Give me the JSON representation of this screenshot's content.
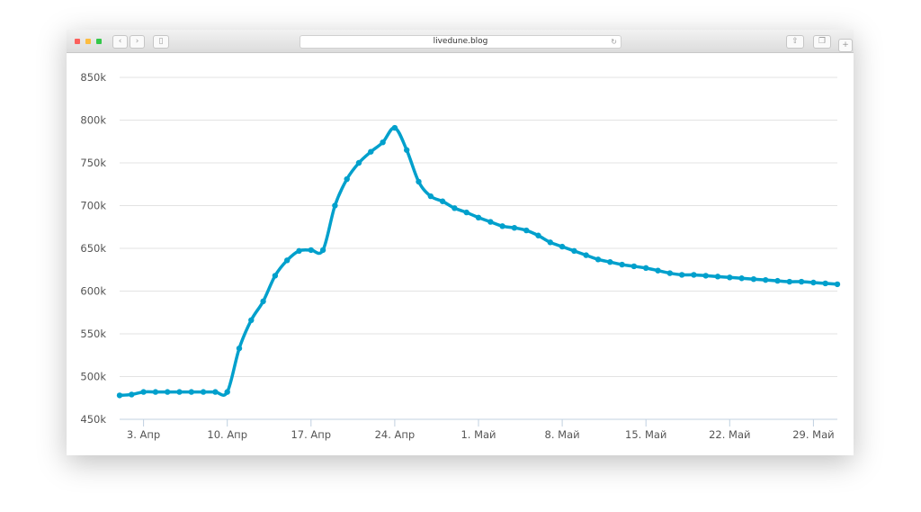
{
  "browser": {
    "url": "livedune.blog",
    "icons": [
      "close-dot",
      "minimize-dot",
      "maximize-dot",
      "back-icon",
      "forward-icon",
      "sidebar-icon",
      "reload-icon",
      "share-icon",
      "tabs-icon",
      "new-tab-icon"
    ],
    "back": "‹",
    "forward": "›",
    "new_tab": "+"
  },
  "chart_data": {
    "type": "line",
    "title": "",
    "xlabel": "",
    "ylabel": "",
    "ylim": [
      450000,
      850000
    ],
    "yticks": [
      "450k",
      "500k",
      "550k",
      "600k",
      "650k",
      "700k",
      "750k",
      "800k",
      "850k"
    ],
    "xticks": [
      "3. Апр",
      "10. Апр",
      "17. Апр",
      "24. Апр",
      "1. Май",
      "8. Май",
      "15. Май",
      "22. Май",
      "29. Май"
    ],
    "x_range": [
      "Apr 1",
      "May 31"
    ],
    "grid": true,
    "color": "#00a0cc",
    "values_k": [
      478,
      479,
      482,
      482,
      482,
      482,
      482,
      482,
      482,
      482,
      533,
      566,
      588,
      618,
      636,
      647,
      648,
      648,
      700,
      731,
      750,
      763,
      774,
      791,
      765,
      728,
      711,
      705,
      697,
      692,
      686,
      681,
      676,
      674,
      671,
      665,
      657,
      652,
      647,
      642,
      637,
      634,
      631,
      629,
      627,
      624,
      621,
      619,
      619,
      618,
      617,
      616,
      615,
      614,
      613,
      612,
      611,
      611,
      610,
      609,
      608
    ]
  }
}
